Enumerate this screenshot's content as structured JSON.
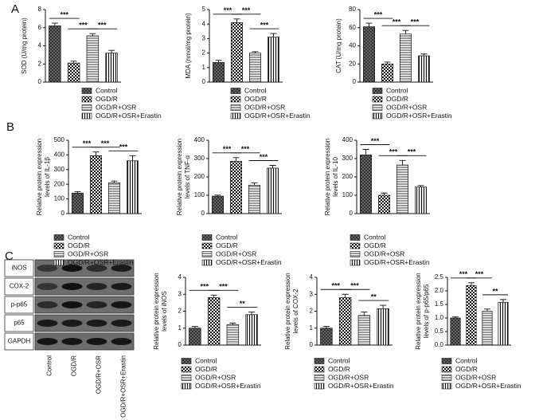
{
  "panels": [
    "A",
    "B",
    "C"
  ],
  "blot": {
    "rows": [
      "iNOS",
      "COX-2",
      "p-p65",
      "p65",
      "GAPDH"
    ],
    "lanes": [
      "Control",
      "OGD/R",
      "OGD/R+OSR",
      "OGD/R+OSR+Erastin"
    ]
  },
  "chart_data": [
    {
      "type": "bar",
      "ylabel": [
        "SOD (U/mg protein)"
      ],
      "categories": [
        "Control",
        "OGD/R",
        "OGD/R+OSR",
        "OGD/R+OSR+Erastin"
      ],
      "values": [
        6.2,
        2.1,
        5.1,
        3.2
      ],
      "errors": [
        0.3,
        0.2,
        0.25,
        0.3
      ],
      "ylim": [
        0,
        8
      ],
      "yticks": [
        0,
        2,
        4,
        6,
        8
      ],
      "annotations": [
        {
          "text": "***",
          "between": [
            0,
            1
          ]
        },
        {
          "text": "***",
          "between": [
            1,
            2
          ]
        },
        {
          "text": "***",
          "between": [
            2,
            3
          ]
        }
      ]
    },
    {
      "type": "bar",
      "ylabel": [
        "MDA (nmol/mg protein)"
      ],
      "categories": [
        "Control",
        "OGD/R",
        "OGD/R+OSR",
        "OGD/R+OSR+Erastin"
      ],
      "values": [
        1.35,
        4.1,
        2.0,
        3.1
      ],
      "errors": [
        0.15,
        0.25,
        0.1,
        0.25
      ],
      "ylim": [
        0,
        5
      ],
      "yticks": [
        0,
        1,
        2,
        3,
        4,
        5
      ],
      "annotations": [
        {
          "text": "***",
          "between": [
            0,
            1
          ]
        },
        {
          "text": "***",
          "between": [
            1,
            2
          ]
        },
        {
          "text": "***",
          "between": [
            2,
            3
          ]
        }
      ]
    },
    {
      "type": "bar",
      "ylabel": [
        "CAT (U/mg protein)"
      ],
      "categories": [
        "Control",
        "OGD/R",
        "OGD/R+OSR",
        "OGD/R+OSR+Erastin"
      ],
      "values": [
        61,
        20,
        53,
        29
      ],
      "errors": [
        4,
        2,
        4,
        2
      ],
      "ylim": [
        0,
        80
      ],
      "yticks": [
        0,
        20,
        40,
        60,
        80
      ],
      "annotations": [
        {
          "text": "***",
          "between": [
            0,
            1
          ]
        },
        {
          "text": "***",
          "between": [
            1,
            2
          ]
        },
        {
          "text": "***",
          "between": [
            2,
            3
          ]
        }
      ]
    },
    {
      "type": "bar",
      "ylabel": [
        "Relative protein expression",
        "levels of IL-1β"
      ],
      "categories": [
        "Control",
        "OGD/R",
        "OGD/R+OSR",
        "OGD/R+OSR+Erastin"
      ],
      "values": [
        140,
        395,
        210,
        360
      ],
      "errors": [
        10,
        25,
        12,
        35
      ],
      "ylim": [
        0,
        500
      ],
      "yticks": [
        0,
        100,
        200,
        300,
        400,
        500
      ],
      "annotations": [
        {
          "text": "***",
          "between": [
            0,
            1
          ]
        },
        {
          "text": "***",
          "between": [
            1,
            2
          ]
        },
        {
          "text": "***",
          "between": [
            2,
            3
          ]
        }
      ]
    },
    {
      "type": "bar",
      "ylabel": [
        "Relative protein expression",
        "levels of TNF-α"
      ],
      "categories": [
        "Control",
        "OGD/R",
        "OGD/R+OSR",
        "OGD/R+OSR+Erastin"
      ],
      "values": [
        95,
        285,
        155,
        248
      ],
      "errors": [
        6,
        20,
        12,
        15
      ],
      "ylim": [
        0,
        400
      ],
      "yticks": [
        0,
        100,
        200,
        300,
        400
      ],
      "annotations": [
        {
          "text": "***",
          "between": [
            0,
            1
          ]
        },
        {
          "text": "***",
          "between": [
            1,
            2
          ]
        },
        {
          "text": "***",
          "between": [
            2,
            3
          ]
        }
      ]
    },
    {
      "type": "bar",
      "ylabel": [
        "Relative protein expression",
        "levels of IL-10"
      ],
      "categories": [
        "Control",
        "OGD/R",
        "OGD/R+OSR",
        "OGD/R+OSR+Erastin"
      ],
      "values": [
        320,
        100,
        265,
        145
      ],
      "errors": [
        30,
        12,
        25,
        8
      ],
      "ylim": [
        0,
        400
      ],
      "yticks": [
        0,
        100,
        200,
        300,
        400
      ],
      "annotations": [
        {
          "text": "***",
          "between": [
            0,
            1
          ]
        },
        {
          "text": "***",
          "between": [
            1,
            2
          ]
        },
        {
          "text": "***",
          "between": [
            2,
            3
          ]
        }
      ]
    },
    {
      "type": "bar",
      "ylabel": [
        "Relative protein expression",
        "levels of iNOS"
      ],
      "categories": [
        "Control",
        "OGD/R",
        "OGD/R+OSR",
        "OGD/R+OSR+Erastin"
      ],
      "values": [
        1.0,
        2.8,
        1.2,
        1.8
      ],
      "errors": [
        0.1,
        0.15,
        0.1,
        0.15
      ],
      "ylim": [
        0,
        4
      ],
      "yticks": [
        0,
        1,
        2,
        3,
        4
      ],
      "annotations": [
        {
          "text": "***",
          "between": [
            0,
            1
          ]
        },
        {
          "text": "***",
          "between": [
            1,
            2
          ]
        },
        {
          "text": "**",
          "between": [
            2,
            3
          ]
        }
      ]
    },
    {
      "type": "bar",
      "ylabel": [
        "Relative protein expression",
        "levels of COX-2"
      ],
      "categories": [
        "Control",
        "OGD/R",
        "OGD/R+OSR",
        "OGD/R+OSR+Erastin"
      ],
      "values": [
        1.0,
        2.8,
        1.75,
        2.15
      ],
      "errors": [
        0.1,
        0.2,
        0.2,
        0.2
      ],
      "ylim": [
        0,
        4
      ],
      "yticks": [
        0,
        1,
        2,
        3,
        4
      ],
      "annotations": [
        {
          "text": "***",
          "between": [
            0,
            1
          ]
        },
        {
          "text": "***",
          "between": [
            1,
            2
          ]
        },
        {
          "text": "**",
          "between": [
            2,
            3
          ]
        }
      ]
    },
    {
      "type": "bar",
      "ylabel": [
        "Relative protein expression",
        "levels of p-p65/p65"
      ],
      "categories": [
        "Control",
        "OGD/R",
        "OGD/R+OSR",
        "OGD/R+OSR+Erastin"
      ],
      "values": [
        1.0,
        2.2,
        1.25,
        1.58
      ],
      "errors": [
        0.04,
        0.1,
        0.08,
        0.1
      ],
      "ylim": [
        0,
        2.5
      ],
      "yticks": [
        {
          "value": 0,
          "label": "0.0"
        },
        0.5,
        {
          "value": 1,
          "label": "1.0"
        },
        1.5,
        {
          "value": 2,
          "label": "2.0"
        },
        2.5
      ],
      "annotations": [
        {
          "text": "***",
          "between": [
            0,
            1
          ]
        },
        {
          "text": "***",
          "between": [
            1,
            2
          ]
        },
        {
          "text": "**",
          "between": [
            2,
            3
          ]
        }
      ]
    }
  ]
}
